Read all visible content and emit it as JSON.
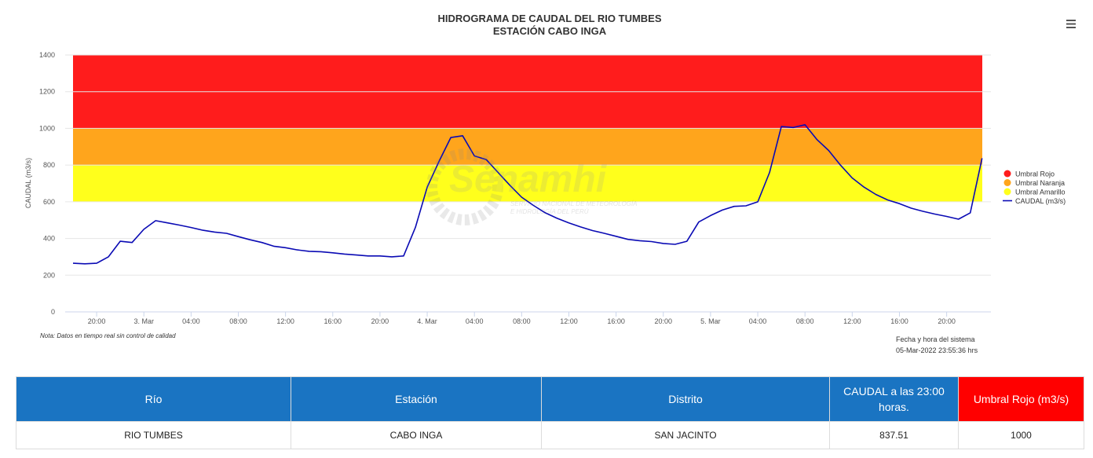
{
  "chart_data": {
    "type": "line",
    "title": "HIDROGRAMA DE CAUDAL DEL RIO TUMBES",
    "subtitle": "ESTACIÓN CABO INGA",
    "y_label": "CAUDAL (m3/s)",
    "ylim": [
      0,
      1400
    ],
    "yticks": [
      0,
      200,
      400,
      600,
      800,
      1000,
      1200,
      1400
    ],
    "grid": true,
    "xlim": [
      "03-02T18:00",
      "03-05T23:45"
    ],
    "xticks": [
      {
        "value": "03-02T20:00",
        "label": "20:00"
      },
      {
        "value": "03-03T00:00",
        "label": "3. Mar"
      },
      {
        "value": "03-03T04:00",
        "label": "04:00"
      },
      {
        "value": "03-03T08:00",
        "label": "08:00"
      },
      {
        "value": "03-03T12:00",
        "label": "12:00"
      },
      {
        "value": "03-03T16:00",
        "label": "16:00"
      },
      {
        "value": "03-03T20:00",
        "label": "20:00"
      },
      {
        "value": "03-04T00:00",
        "label": "4. Mar"
      },
      {
        "value": "03-04T04:00",
        "label": "04:00"
      },
      {
        "value": "03-04T08:00",
        "label": "08:00"
      },
      {
        "value": "03-04T12:00",
        "label": "12:00"
      },
      {
        "value": "03-04T16:00",
        "label": "16:00"
      },
      {
        "value": "03-04T20:00",
        "label": "20:00"
      },
      {
        "value": "03-05T00:00",
        "label": "5. Mar"
      },
      {
        "value": "03-05T04:00",
        "label": "04:00"
      },
      {
        "value": "03-05T08:00",
        "label": "08:00"
      },
      {
        "value": "03-05T12:00",
        "label": "12:00"
      },
      {
        "value": "03-05T16:00",
        "label": "16:00"
      },
      {
        "value": "03-05T20:00",
        "label": "20:00"
      }
    ],
    "bands": [
      {
        "name": "Umbral Rojo",
        "from": 1000,
        "to": 1400,
        "color": "#ff1c1c"
      },
      {
        "name": "Umbral Naranja",
        "from": 800,
        "to": 1000,
        "color": "#ffa51c"
      },
      {
        "name": "Umbral Amarillo",
        "from": 600,
        "to": 800,
        "color": "#ffff1c"
      }
    ],
    "x": [
      "03-02T18:00",
      "03-02T19:00",
      "03-02T20:00",
      "03-02T21:00",
      "03-02T22:00",
      "03-02T23:00",
      "03-03T00:00",
      "03-03T01:00",
      "03-03T02:00",
      "03-03T03:00",
      "03-03T04:00",
      "03-03T05:00",
      "03-03T06:00",
      "03-03T07:00",
      "03-03T08:00",
      "03-03T09:00",
      "03-03T10:00",
      "03-03T11:00",
      "03-03T12:00",
      "03-03T13:00",
      "03-03T14:00",
      "03-03T15:00",
      "03-03T16:00",
      "03-03T17:00",
      "03-03T18:00",
      "03-03T19:00",
      "03-03T20:00",
      "03-03T21:00",
      "03-03T22:00",
      "03-03T23:00",
      "03-04T00:00",
      "03-04T01:00",
      "03-04T02:00",
      "03-04T03:00",
      "03-04T04:00",
      "03-04T05:00",
      "03-04T06:00",
      "03-04T07:00",
      "03-04T08:00",
      "03-04T09:00",
      "03-04T10:00",
      "03-04T11:00",
      "03-04T12:00",
      "03-04T13:00",
      "03-04T14:00",
      "03-04T15:00",
      "03-04T16:00",
      "03-04T17:00",
      "03-04T18:00",
      "03-04T19:00",
      "03-04T20:00",
      "03-04T21:00",
      "03-04T22:00",
      "03-04T23:00",
      "03-05T00:00",
      "03-05T01:00",
      "03-05T02:00",
      "03-05T03:00",
      "03-05T04:00",
      "03-05T05:00",
      "03-05T06:00",
      "03-05T07:00",
      "03-05T08:00",
      "03-05T09:00",
      "03-05T10:00",
      "03-05T11:00",
      "03-05T12:00",
      "03-05T13:00",
      "03-05T14:00",
      "03-05T15:00",
      "03-05T16:00",
      "03-05T17:00",
      "03-05T18:00",
      "03-05T19:00",
      "03-05T20:00",
      "03-05T21:00",
      "03-05T22:00",
      "03-05T23:00"
    ],
    "series": [
      {
        "name": "CAUDAL (m3/s)",
        "color": "#0a0ab4",
        "values": [
          265,
          262,
          265,
          300,
          385,
          378,
          450,
          497,
          485,
          473,
          460,
          445,
          435,
          428,
          410,
          393,
          378,
          358,
          350,
          338,
          330,
          328,
          322,
          315,
          310,
          305,
          305,
          300,
          305,
          460,
          680,
          820,
          950,
          960,
          850,
          830,
          760,
          690,
          625,
          580,
          540,
          510,
          485,
          463,
          443,
          428,
          412,
          395,
          388,
          383,
          373,
          368,
          385,
          490,
          525,
          555,
          575,
          578,
          600,
          760,
          1010,
          1005,
          1020,
          940,
          880,
          800,
          730,
          680,
          640,
          610,
          590,
          565,
          548,
          533,
          520,
          505,
          540,
          837.51
        ]
      }
    ],
    "note": "Nota: Datos en tiempo real sin control de calidad",
    "system_time_label": "Fecha y hora del sistema",
    "system_time": "05-Mar-2022 23:55:36 hrs",
    "watermark": "Senamhi",
    "watermark_lines": [
      "SERVICIO NACIONAL DE METEOROLOGÍA",
      "E HIDROLOGÍA DEL PERÚ"
    ]
  },
  "table": {
    "headers": [
      "Río",
      "Estación",
      "Distrito",
      "CAUDAL a las 23:00 horas.",
      "Umbral Rojo (m3/s)"
    ],
    "rows": [
      [
        "RIO TUMBES",
        "CABO INGA",
        "SAN JACINTO",
        837.51,
        1000
      ]
    ]
  }
}
